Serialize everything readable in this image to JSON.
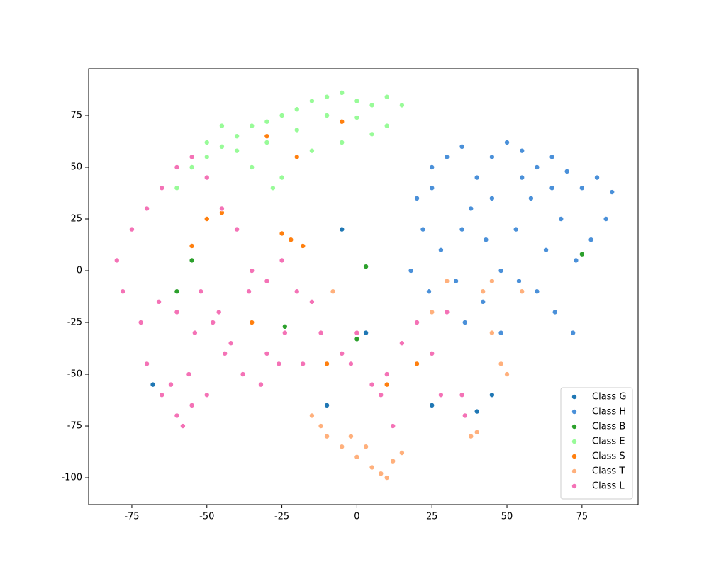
{
  "chart_data": {
    "type": "scatter",
    "xlim": [
      -89.4,
      93.7
    ],
    "ylim": [
      -113,
      97.6
    ],
    "xticks": [
      -75,
      -50,
      -25,
      0,
      25,
      50,
      75
    ],
    "yticks": [
      -100,
      -75,
      -50,
      -25,
      0,
      25,
      50,
      75
    ],
    "grid": false,
    "legend": "lower right",
    "series": [
      {
        "name": "Class G",
        "color": "#1f77b4",
        "x": [
          3,
          -10,
          40,
          -68,
          25,
          45,
          -5
        ],
        "values": [
          -30,
          -65,
          -68,
          -55,
          -65,
          -60,
          20
        ]
      },
      {
        "name": "Class H",
        "color": "#4a90d9",
        "x": [
          20,
          25,
          30,
          35,
          40,
          45,
          50,
          55,
          60,
          65,
          70,
          75,
          80,
          85,
          22,
          28,
          33,
          38,
          43,
          48,
          53,
          58,
          63,
          68,
          73,
          78,
          83,
          18,
          24,
          30,
          36,
          42,
          48,
          54,
          60,
          66,
          72,
          25,
          35,
          45,
          55,
          65
        ],
        "values": [
          35,
          50,
          55,
          60,
          45,
          55,
          62,
          58,
          50,
          55,
          48,
          40,
          45,
          38,
          20,
          10,
          -5,
          30,
          15,
          0,
          20,
          35,
          10,
          25,
          5,
          15,
          25,
          0,
          -10,
          -20,
          -25,
          -15,
          -30,
          -5,
          -10,
          -20,
          -30,
          40,
          20,
          35,
          45,
          40
        ]
      },
      {
        "name": "Class B",
        "color": "#2ca02c",
        "x": [
          3,
          -55,
          -60,
          75,
          40,
          -24,
          0
        ],
        "values": [
          2,
          5,
          -10,
          8,
          -78,
          -27,
          -33
        ]
      },
      {
        "name": "Class E",
        "color": "#98fb98",
        "x": [
          -60,
          -55,
          -50,
          -45,
          -40,
          -35,
          -30,
          -25,
          -20,
          -15,
          -10,
          -5,
          0,
          5,
          10,
          15,
          -50,
          -40,
          -30,
          -20,
          -10,
          0,
          10,
          -35,
          -25,
          -15,
          -5,
          5,
          -28,
          -45
        ],
        "values": [
          40,
          50,
          55,
          60,
          65,
          70,
          72,
          75,
          78,
          82,
          84,
          86,
          82,
          80,
          84,
          80,
          62,
          58,
          62,
          68,
          75,
          74,
          70,
          50,
          45,
          58,
          62,
          66,
          40,
          70
        ]
      },
      {
        "name": "Class S",
        "color": "#ff7f0e",
        "x": [
          -25,
          -22,
          -18,
          -30,
          -50,
          -55,
          -5,
          -45,
          -20,
          -35,
          20,
          -10,
          10
        ],
        "values": [
          18,
          15,
          12,
          65,
          25,
          12,
          72,
          28,
          55,
          -25,
          -45,
          -45,
          -55
        ]
      },
      {
        "name": "Class T",
        "color": "#ffb07c",
        "x": [
          -15,
          -10,
          -5,
          0,
          5,
          10,
          15,
          -12,
          -2,
          8,
          12,
          3,
          45,
          48,
          50,
          42,
          38,
          40,
          25,
          30,
          -8,
          45,
          55
        ],
        "values": [
          -70,
          -80,
          -85,
          -90,
          -95,
          -100,
          -88,
          -75,
          -80,
          -98,
          -92,
          -85,
          -30,
          -45,
          -50,
          -10,
          -80,
          -78,
          -20,
          -5,
          -10,
          -5,
          -10
        ]
      },
      {
        "name": "Class L",
        "color": "#f472b6",
        "x": [
          -80,
          -75,
          -70,
          -65,
          -60,
          -55,
          -50,
          -45,
          -40,
          -35,
          -30,
          -25,
          -20,
          -15,
          -78,
          -72,
          -66,
          -60,
          -54,
          -48,
          -42,
          -36,
          -30,
          -24,
          -18,
          -12,
          -70,
          -62,
          -56,
          -50,
          -44,
          -38,
          -32,
          -26,
          -55,
          -60,
          -65,
          -58,
          -52,
          -46,
          -5,
          0,
          5,
          10,
          15,
          20,
          25,
          30,
          35,
          -2,
          8,
          12,
          28,
          36
        ],
        "values": [
          5,
          20,
          30,
          40,
          50,
          55,
          45,
          30,
          20,
          0,
          -5,
          5,
          -10,
          -15,
          -10,
          -25,
          -15,
          -20,
          -30,
          -25,
          -35,
          -10,
          -40,
          -30,
          -45,
          -30,
          -45,
          -55,
          -50,
          -60,
          -40,
          -50,
          -55,
          -45,
          -65,
          -70,
          -60,
          -75,
          -10,
          -20,
          -40,
          -30,
          -55,
          -50,
          -35,
          -25,
          -40,
          -20,
          -60,
          -45,
          -60,
          -75,
          -60,
          -70
        ]
      }
    ]
  }
}
